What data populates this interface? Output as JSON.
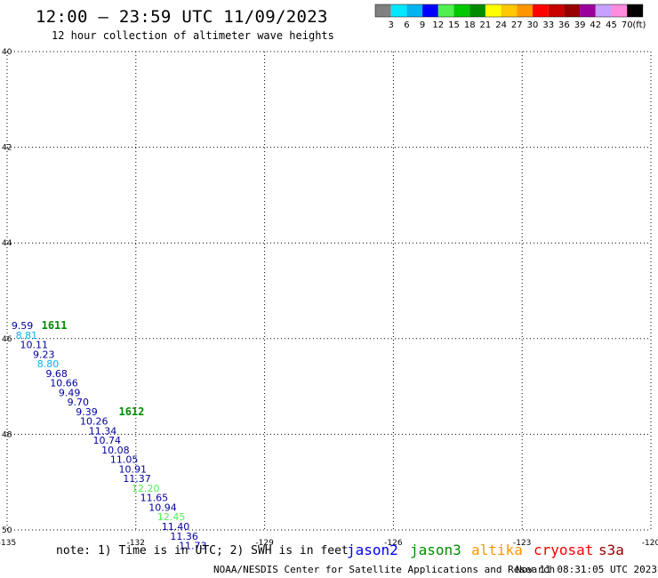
{
  "header": {
    "title": "12:00 – 23:59 UTC 11/09/2023",
    "subtitle": "12 hour collection of altimeter wave heights"
  },
  "colorbar": {
    "colors": [
      "#808080",
      "#00e8ff",
      "#00b4f0",
      "#0000ff",
      "#50f050",
      "#00c800",
      "#008c00",
      "#ffff00",
      "#ffc800",
      "#ff9600",
      "#ff0000",
      "#c80000",
      "#960000",
      "#9b009b",
      "#c8a0ff",
      "#ff8cdc",
      "#000000"
    ],
    "labels": [
      "3",
      "6",
      "9",
      "12",
      "15",
      "18",
      "21",
      "24",
      "27",
      "30",
      "33",
      "36",
      "39",
      "42",
      "45",
      "70",
      "(ft)"
    ]
  },
  "chart_data": {
    "type": "scatter",
    "title": "12:00 – 23:59 UTC 11/09/2023",
    "subtitle": "12 hour collection of altimeter wave heights",
    "xlim": [
      -135,
      -120
    ],
    "ylim": [
      50,
      40
    ],
    "xticks": [
      "-135",
      "-132",
      "-129",
      "-126",
      "-123",
      "-120"
    ],
    "yticks": [
      "40",
      "42",
      "44",
      "46",
      "48",
      "50"
    ],
    "grid": true,
    "time_labels": [
      {
        "text": "1611",
        "lon": -134.2,
        "lat": 45.8,
        "color": "#008c00"
      },
      {
        "text": "1612",
        "lon": -132.4,
        "lat": 47.6,
        "color": "#008c00"
      }
    ],
    "points": [
      {
        "lon": -134.9,
        "lat": 45.8,
        "swh": "9.59",
        "color": "#0000a0"
      },
      {
        "lon": -134.8,
        "lat": 46.0,
        "swh": "8.81",
        "color": "#00b4f0"
      },
      {
        "lon": -134.7,
        "lat": 46.2,
        "swh": "10.11",
        "color": "#0000a0"
      },
      {
        "lon": -134.4,
        "lat": 46.4,
        "swh": "9.23",
        "color": "#0000a0"
      },
      {
        "lon": -134.3,
        "lat": 46.6,
        "swh": "8.80",
        "color": "#00b4f0"
      },
      {
        "lon": -134.1,
        "lat": 46.8,
        "swh": "9.68",
        "color": "#0000a0"
      },
      {
        "lon": -134.0,
        "lat": 47.0,
        "swh": "10.66",
        "color": "#0000a0"
      },
      {
        "lon": -133.8,
        "lat": 47.2,
        "swh": "9.49",
        "color": "#0000a0"
      },
      {
        "lon": -133.6,
        "lat": 47.4,
        "swh": "9.70",
        "color": "#0000a0"
      },
      {
        "lon": -133.4,
        "lat": 47.6,
        "swh": "9.39",
        "color": "#0000a0"
      },
      {
        "lon": -133.3,
        "lat": 47.8,
        "swh": "10.26",
        "color": "#0000a0"
      },
      {
        "lon": -133.1,
        "lat": 48.0,
        "swh": "11.34",
        "color": "#0000a0"
      },
      {
        "lon": -133.0,
        "lat": 48.2,
        "swh": "10.74",
        "color": "#0000a0"
      },
      {
        "lon": -132.8,
        "lat": 48.4,
        "swh": "10.08",
        "color": "#0000a0"
      },
      {
        "lon": -132.6,
        "lat": 48.6,
        "swh": "11.05",
        "color": "#0000a0"
      },
      {
        "lon": -132.4,
        "lat": 48.8,
        "swh": "10.91",
        "color": "#0000a0"
      },
      {
        "lon": -132.3,
        "lat": 49.0,
        "swh": "11.37",
        "color": "#0000a0"
      },
      {
        "lon": -132.1,
        "lat": 49.2,
        "swh": "12.20",
        "color": "#50f050"
      },
      {
        "lon": -131.9,
        "lat": 49.4,
        "swh": "11.65",
        "color": "#0000a0"
      },
      {
        "lon": -131.7,
        "lat": 49.6,
        "swh": "10.94",
        "color": "#0000a0"
      },
      {
        "lon": -131.5,
        "lat": 49.8,
        "swh": "12.45",
        "color": "#50f050"
      },
      {
        "lon": -131.4,
        "lat": 50.0,
        "swh": "11.40",
        "color": "#0000a0"
      },
      {
        "lon": -131.2,
        "lat": 50.2,
        "swh": "11.36",
        "color": "#0000a0"
      },
      {
        "lon": -131.0,
        "lat": 50.4,
        "swh": "11.73",
        "color": "#0000a0"
      }
    ]
  },
  "footer": {
    "note": "note: 1) Time is in UTC; 2) SWH is in feet",
    "credit": "NOAA/NESDIS Center for Satellite Applications and Research",
    "timestamp": "Nov 11 08:31:05 UTC 2023",
    "satellites": [
      {
        "label": "jason2",
        "color": "#0000ff"
      },
      {
        "label": "jason3",
        "color": "#008c00"
      },
      {
        "label": "altika",
        "color": "#ff9600"
      },
      {
        "label": "cryosat",
        "color": "#ff0000"
      },
      {
        "label": "s3a",
        "color": "#960000"
      }
    ]
  }
}
